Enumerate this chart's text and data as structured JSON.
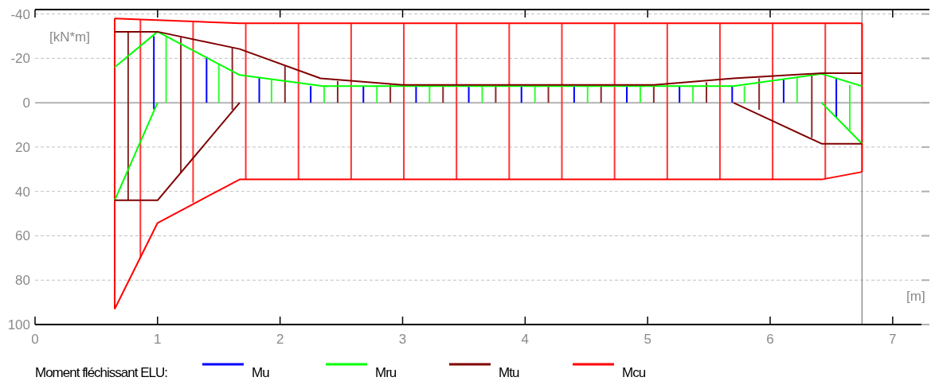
{
  "chart_data": {
    "type": "line",
    "xlabel": "[m]",
    "ylabel": "[kN*m]",
    "legend_title": "Moment fléchissant ELU:",
    "legend": "bottom",
    "grid": "y",
    "line_style": "solid",
    "xlim": [
      0,
      7.3
    ],
    "ylim": [
      100,
      -42
    ],
    "xticks": [
      0,
      1,
      2,
      3,
      4,
      5,
      6,
      7
    ],
    "yticks": [
      -40,
      -20,
      0,
      20,
      40,
      60,
      80,
      100
    ],
    "ref_lines": [
      {
        "axis": "y",
        "value": 0,
        "color": "#b4b4b4"
      },
      {
        "axis": "x",
        "value": 6.75,
        "color": "#909090"
      }
    ],
    "series": [
      {
        "name": "Mu",
        "type": "bar",
        "color": "#0000ff",
        "x": [
          0.97,
          1.4,
          1.83,
          2.25,
          2.68,
          3.11,
          3.54,
          3.97,
          4.4,
          4.83,
          5.26,
          5.69,
          6.11,
          6.54
        ],
        "base": [
          3,
          0,
          0,
          0,
          0,
          0,
          0,
          0,
          0,
          0,
          0,
          0,
          0,
          6.5
        ],
        "values": [
          -33,
          -20.8,
          -11.5,
          -7.5,
          -7.5,
          -7.5,
          -7.5,
          -7.5,
          -7.5,
          -7.5,
          -7.5,
          -7.5,
          -10.8,
          -17.3
        ]
      },
      {
        "name": "Mru",
        "color": "#00ff00",
        "x": [
          0.65,
          1.0,
          1.67,
          2.35,
          5.7,
          6.42,
          6.75
        ],
        "values": [
          -16,
          -32,
          -12.5,
          -7.5,
          -7.5,
          -13,
          -7.5
        ]
      },
      {
        "name": "Mtu",
        "color": "#800000",
        "x": [
          0.65,
          1.0,
          1.67,
          2.33,
          3.0,
          5.05,
          5.7,
          6.42,
          6.75
        ],
        "values": [
          -32,
          -32,
          -24.2,
          -11,
          -8,
          -8,
          -11,
          -13.3,
          -13.3
        ]
      },
      {
        "name": "Mcu",
        "color": "#ff0000",
        "x": [
          0.65,
          1.67,
          6.75
        ],
        "values": [
          -38,
          -35.8,
          -35.8
        ]
      },
      {
        "color": "#00ff00",
        "x": [
          0.65,
          1.0
        ],
        "values": [
          44,
          0
        ]
      },
      {
        "color": "#00ff00",
        "x": [
          6.42,
          6.75
        ],
        "values": [
          0,
          18.5
        ]
      },
      {
        "color": "#800000",
        "x": [
          0.65,
          1.0,
          1.67
        ],
        "values": [
          44,
          44,
          0
        ]
      },
      {
        "color": "#800000",
        "x": [
          5.7,
          6.42,
          6.75
        ],
        "values": [
          0,
          18.5,
          18.5
        ]
      },
      {
        "color": "#ff0000",
        "x": [
          0.65,
          1.0,
          1.67,
          6.42,
          6.75
        ],
        "values": [
          93,
          54.2,
          34.6,
          34.6,
          31.2
        ]
      },
      {
        "type": "bar",
        "color": "#ff0000",
        "x": [
          0.65,
          6.75
        ],
        "base": [
          93,
          31.2
        ],
        "values": [
          -131,
          -67
        ]
      },
      {
        "type": "bar",
        "color": "#33ff33",
        "x": [
          1.07,
          1.5,
          1.93,
          2.36,
          2.79,
          3.22,
          3.65,
          4.08,
          4.51,
          4.94,
          5.37,
          5.79,
          6.22,
          6.65
        ],
        "base": [
          0,
          0,
          0,
          0,
          0,
          0,
          0,
          0,
          0,
          0,
          0,
          0,
          0,
          12.6
        ],
        "values": [
          -29.8,
          -17.6,
          -10.8,
          -7.5,
          -7.5,
          -7.5,
          -7.5,
          -7.5,
          -7.5,
          -7.5,
          -7.5,
          -7.5,
          -11.3,
          -20.6
        ]
      },
      {
        "type": "bar",
        "color": "#8b2a2a",
        "x": [
          0.76,
          1.19,
          1.61,
          2.04,
          2.47,
          2.9,
          3.33,
          3.76,
          4.19,
          4.62,
          5.05,
          5.48,
          5.91,
          6.34
        ],
        "base": [
          44,
          31.6,
          3.2,
          0,
          0,
          0,
          0,
          0,
          0,
          0,
          0,
          0,
          3.2,
          15.8
        ],
        "values": [
          -76,
          -61,
          -28,
          -16.5,
          -9.8,
          -8.2,
          -7.8,
          -7.8,
          -7.8,
          -7.8,
          -7.8,
          -9.2,
          -14.2,
          -28.5
        ]
      },
      {
        "type": "bar",
        "color": "#ff3333",
        "x": [
          0.86,
          1.29,
          1.72,
          2.15,
          2.58,
          3.01,
          3.44,
          3.87,
          4.3,
          4.73,
          5.16,
          5.59,
          6.02,
          6.45
        ],
        "base": [
          69.6,
          45,
          34.6,
          34.6,
          34.6,
          34.6,
          34.6,
          34.6,
          34.6,
          34.6,
          34.6,
          34.6,
          34.6,
          34.3
        ],
        "values": [
          -107,
          -82,
          -70.1,
          -70.1,
          -70.1,
          -70.1,
          -70.1,
          -70.1,
          -70.1,
          -70.1,
          -70.1,
          -70.1,
          -70.1,
          -69.8
        ]
      }
    ]
  }
}
